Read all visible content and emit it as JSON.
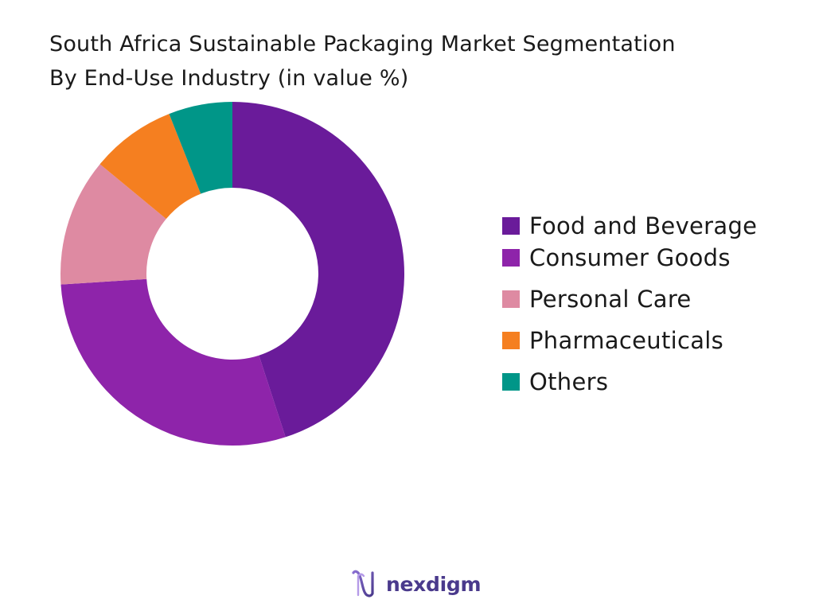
{
  "chart_data": {
    "type": "pie",
    "variant": "donut",
    "title": [
      "South Africa Sustainable Packaging Market Segmentation",
      "By End-Use Industry (in value %)"
    ],
    "categories": [
      "Food and Beverage",
      "Consumer Goods",
      "Personal Care",
      "Pharmaceuticals",
      "Others"
    ],
    "values": [
      45,
      29,
      12,
      8,
      6
    ],
    "colors": [
      "#6a1b9a",
      "#8e24aa",
      "#de8aa2",
      "#f57f20",
      "#009688"
    ],
    "legend_position": "right"
  },
  "brand": {
    "name": "nexdigm",
    "logo_icon": "nexdigm-logo-icon"
  }
}
